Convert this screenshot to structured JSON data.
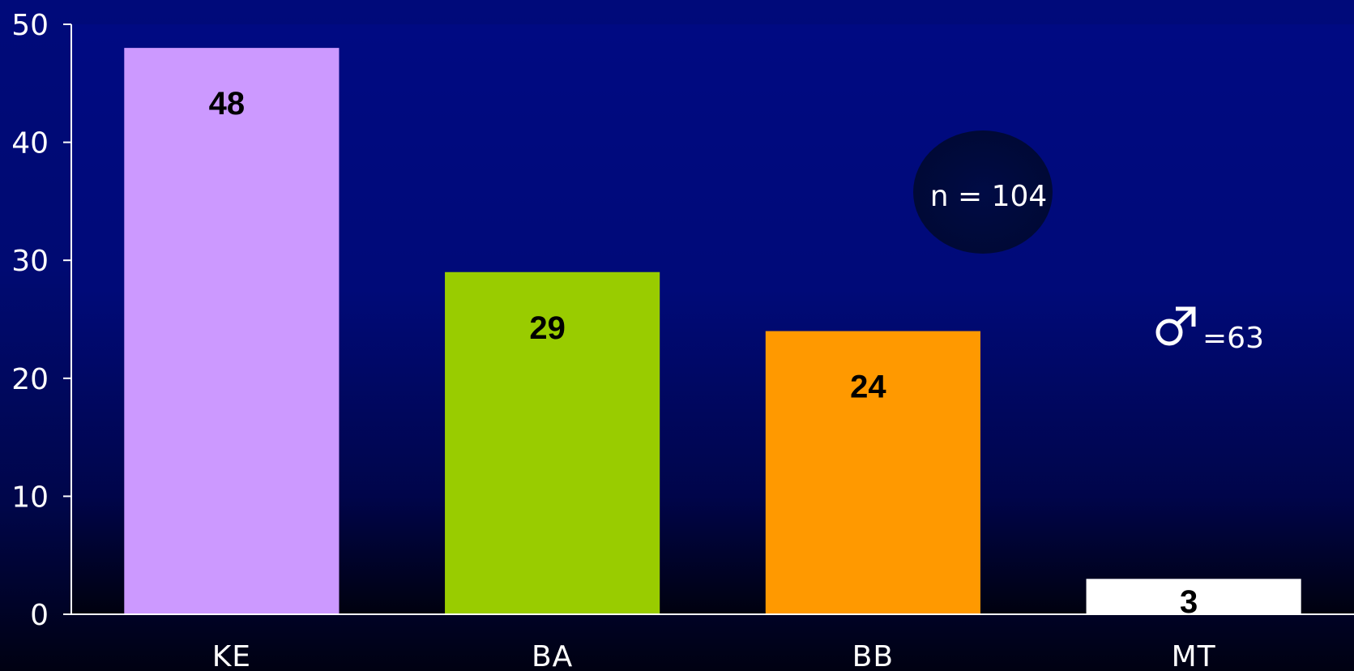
{
  "chart_data": {
    "type": "bar",
    "categories": [
      "KE",
      "BA",
      "BB",
      "MT"
    ],
    "values": [
      48,
      29,
      24,
      3
    ],
    "data_labels": [
      "48",
      "29",
      "24",
      "3"
    ],
    "bar_colors": [
      "#cc99ff",
      "#99cc00",
      "#ff9900",
      "#ffffff"
    ],
    "title": "",
    "xlabel": "",
    "ylabel": "",
    "ylim": [
      0,
      50
    ],
    "yticks": [
      0,
      10,
      20,
      30,
      40,
      50
    ],
    "ytick_labels": [
      "0",
      "10",
      "20",
      "30",
      "40",
      "50"
    ],
    "grid": false,
    "legend": "none",
    "annotations": {
      "sample_size": "n = 104",
      "male_count": "=63",
      "male_symbol_icon": "male-symbol-icon"
    },
    "colors": {
      "plot_background_top": "#000a7a",
      "plot_background_bottom": "#000112",
      "axis": "#ffffff",
      "ellipse": "#000a40"
    }
  }
}
